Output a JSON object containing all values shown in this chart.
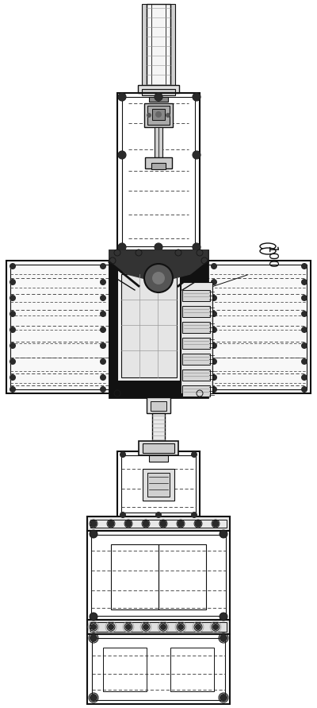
{
  "bg_color": "#ffffff",
  "lc": "#111111",
  "dc": "#333333",
  "fig_width": 4.0,
  "fig_height": 8.91,
  "dpi": 100
}
